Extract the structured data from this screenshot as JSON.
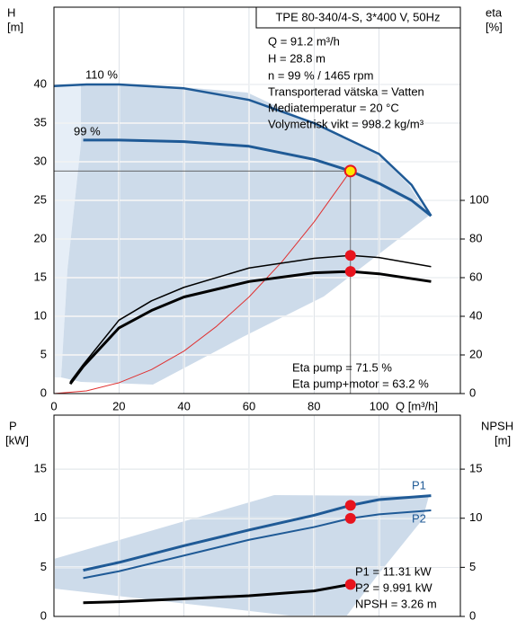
{
  "chart_data": [
    {
      "type": "line",
      "title": "TPE 80-340/4-S, 3*400 V, 50Hz",
      "annotations": [
        "Q = 91.2 m³/h",
        "H = 28.8 m",
        "n = 99 % / 1465 rpm",
        "Transporterad vätska = Vatten",
        "Mediatemperatur = 20 °C",
        "Volymetrisk vikt = 998.2 kg/m³"
      ],
      "results": [
        "Eta pump = 71.5 %",
        "Eta pump+motor = 63.2 %"
      ],
      "x_label": "Q [m³/h]",
      "y_label": "H",
      "y_unit": "[m]",
      "y2_label": "eta",
      "y2_unit": "[%]",
      "xlim": [
        0,
        125
      ],
      "xticks": [
        0,
        20,
        40,
        60,
        80,
        100
      ],
      "ylim": [
        0,
        50
      ],
      "yticks": [
        0,
        5,
        10,
        15,
        20,
        25,
        30,
        35,
        40
      ],
      "y2lim": [
        0,
        200
      ],
      "y2ticks": [
        0,
        20,
        40,
        60,
        80,
        100
      ],
      "grid": true,
      "series": [
        {
          "name": "110 %",
          "color": "#1f5a96",
          "linewidth": 2.5,
          "x": [
            0,
            10,
            20,
            40,
            60,
            80,
            100,
            110,
            116
          ],
          "values": [
            39.8,
            40,
            40,
            39.5,
            38,
            35,
            31,
            27,
            23
          ]
        },
        {
          "name": "99 %",
          "color": "#1f5a96",
          "linewidth": 3,
          "x": [
            9,
            20,
            40,
            60,
            80,
            91.2,
            100,
            110,
            116
          ],
          "values": [
            32.8,
            32.8,
            32.6,
            32,
            30.3,
            28.8,
            27.2,
            25,
            23
          ]
        },
        {
          "color": "#e03030",
          "linewidth": 1,
          "x": [
            0,
            10,
            20,
            30,
            40,
            50,
            60,
            70,
            80,
            91.2
          ],
          "values": [
            0,
            0.35,
            1.4,
            3.1,
            5.5,
            8.7,
            12.5,
            17,
            22.2,
            28.8
          ]
        },
        {
          "color": "#000000",
          "linewidth": 1.5,
          "axis": "y2",
          "x": [
            5,
            9,
            20,
            30,
            40,
            60,
            80,
            91.2,
            100,
            116
          ],
          "values": [
            6,
            15,
            38,
            48,
            55,
            65,
            70,
            71.5,
            70.4,
            65.7
          ]
        },
        {
          "color": "#000000",
          "linewidth": 3,
          "axis": "y2",
          "x": [
            5,
            9,
            20,
            30,
            40,
            60,
            80,
            91.2,
            100,
            116
          ],
          "values": [
            5,
            14,
            34,
            43,
            50,
            58,
            62.5,
            63.2,
            62,
            58
          ]
        }
      ],
      "points": [
        {
          "x": 91.2,
          "y": 28.8,
          "color": "#ffe600"
        },
        {
          "x": 91.2,
          "y": 71.5,
          "axis": "y2",
          "color": "#e8141e"
        },
        {
          "x": 91.2,
          "y": 63.2,
          "axis": "y2",
          "color": "#e8141e"
        }
      ]
    },
    {
      "type": "line",
      "results": [
        "P1 = 11.31 kW",
        "P2 = 9.991 kW",
        "NPSH = 3.26 m"
      ],
      "y_label": "P",
      "y_unit": "[kW]",
      "y2_label": "NPSH",
      "y2_unit": "[m]",
      "xlim": [
        0,
        125
      ],
      "xticks": [
        0,
        20,
        40,
        60,
        80,
        100
      ],
      "ylim": [
        0,
        20.5
      ],
      "yticks": [
        0,
        5,
        10,
        15
      ],
      "y2lim": [
        0,
        20.5
      ],
      "y2ticks": [
        0,
        5,
        10,
        15
      ],
      "grid": true,
      "series": [
        {
          "name": "P1",
          "color": "#1f5a96",
          "linewidth": 3,
          "x": [
            9,
            20,
            40,
            60,
            80,
            91.2,
            100,
            116
          ],
          "values": [
            4.7,
            5.5,
            7.2,
            8.8,
            10.3,
            11.31,
            11.9,
            12.3
          ]
        },
        {
          "name": "P2",
          "color": "#1f5a96",
          "linewidth": 2,
          "x": [
            9,
            20,
            40,
            60,
            80,
            91.2,
            100,
            116
          ],
          "values": [
            3.9,
            4.6,
            6.2,
            7.8,
            9.1,
            9.991,
            10.4,
            10.8
          ]
        },
        {
          "color": "#000000",
          "linewidth": 3,
          "axis": "y2",
          "x": [
            9,
            20,
            40,
            60,
            80,
            91.2
          ],
          "values": [
            1.4,
            1.5,
            1.8,
            2.1,
            2.6,
            3.26
          ]
        }
      ],
      "points": [
        {
          "x": 91.2,
          "y": 11.31,
          "color": "#e8141e"
        },
        {
          "x": 91.2,
          "y": 9.991,
          "color": "#e8141e"
        },
        {
          "x": 91.2,
          "y": 3.26,
          "axis": "y2",
          "color": "#e8141e"
        }
      ]
    }
  ]
}
